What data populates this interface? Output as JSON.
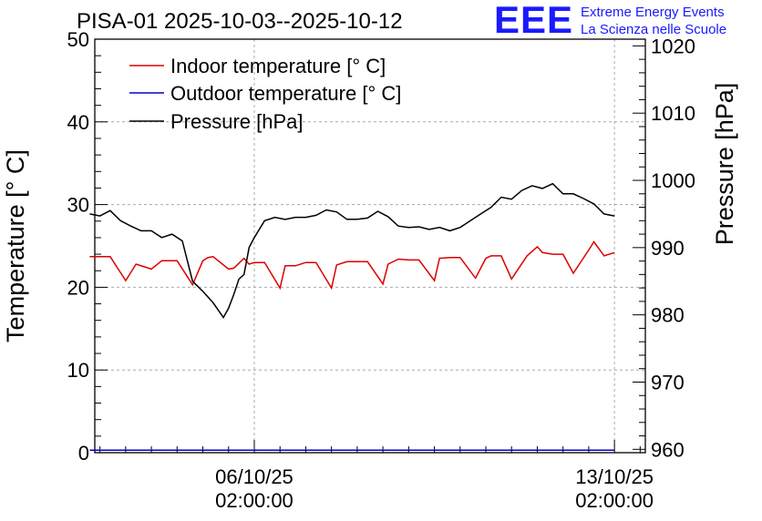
{
  "header": {
    "title": "PISA-01 2025-10-03--2025-10-12",
    "logo_text": "EEE",
    "logo_line1": "Extreme Energy Events",
    "logo_line2": "La Scienza nelle Scuole"
  },
  "colors": {
    "indoor": "#dd0000",
    "outdoor": "#0000cc",
    "pressure": "#000000",
    "logo": "#1a1aff"
  },
  "chart_data": {
    "type": "line",
    "title": "PISA-01 2025-10-03--2025-10-12",
    "ylabel": "Temperature [° C]",
    "y2label": "Pressure [hPa]",
    "ylim": [
      0,
      50
    ],
    "y2lim": [
      959.5,
      1021
    ],
    "yticks": [
      "0",
      "10",
      "20",
      "30",
      "40",
      "50"
    ],
    "y2ticks": [
      "960",
      "970",
      "980",
      "990",
      "1000",
      "1010",
      "1020"
    ],
    "xlim": [
      -3.1,
      7.6
    ],
    "xticks": [
      {
        "x": 0,
        "date": "06/10/25",
        "time": "02:00:00"
      },
      {
        "x": 7,
        "date": "13/10/25",
        "time": "02:00:00"
      }
    ],
    "grid": true,
    "legend_position": "top-left",
    "series": [
      {
        "name": "Indoor temperature [° C]",
        "axis": "left",
        "x": [
          -3.2,
          -2.8,
          -2.5,
          -2.3,
          -2.0,
          -1.8,
          -1.5,
          -1.2,
          -1.0,
          -0.9,
          -0.8,
          -0.5,
          -0.4,
          -0.2,
          -0.1,
          0.0,
          0.2,
          0.5,
          0.6,
          0.8,
          1.0,
          1.2,
          1.5,
          1.6,
          1.8,
          2.0,
          2.2,
          2.5,
          2.6,
          2.8,
          3.0,
          3.2,
          3.5,
          3.6,
          3.8,
          4.0,
          4.3,
          4.5,
          4.6,
          4.8,
          5.0,
          5.3,
          5.5,
          5.6,
          5.8,
          6.0,
          6.2,
          6.5,
          6.6,
          6.8,
          7.0
        ],
        "values": [
          23.7,
          23.7,
          20.8,
          22.8,
          22.2,
          23.2,
          23.2,
          20.3,
          23.2,
          23.6,
          23.7,
          22.2,
          22.3,
          23.5,
          22.8,
          23.0,
          23.0,
          19.9,
          22.6,
          22.6,
          23.0,
          23.0,
          19.9,
          22.7,
          23.1,
          23.1,
          23.1,
          20.4,
          22.8,
          23.4,
          23.3,
          23.3,
          20.8,
          23.5,
          23.6,
          23.6,
          21.1,
          23.5,
          23.8,
          23.8,
          21.0,
          23.8,
          24.9,
          24.2,
          24.0,
          24.0,
          21.7,
          24.5,
          25.5,
          23.8,
          24.2
        ]
      },
      {
        "name": "Outdoor temperature [° C]",
        "axis": "left",
        "x": [
          -3.2,
          7.0
        ],
        "values": [
          0.3,
          0.3
        ]
      },
      {
        "name": "Pressure [hPa]",
        "axis": "right",
        "x": [
          -3.2,
          -3.0,
          -2.8,
          -2.6,
          -2.4,
          -2.2,
          -2.0,
          -1.8,
          -1.6,
          -1.4,
          -1.2,
          -1.0,
          -0.8,
          -0.6,
          -0.5,
          -0.4,
          -0.3,
          -0.2,
          -0.1,
          0.0,
          0.2,
          0.4,
          0.6,
          0.8,
          1.0,
          1.2,
          1.4,
          1.6,
          1.8,
          2.0,
          2.2,
          2.4,
          2.6,
          2.8,
          3.0,
          3.2,
          3.4,
          3.6,
          3.8,
          4.0,
          4.2,
          4.4,
          4.6,
          4.8,
          5.0,
          5.2,
          5.4,
          5.6,
          5.8,
          6.0,
          6.2,
          6.4,
          6.6,
          6.8,
          7.0
        ],
        "values": [
          995,
          994.7,
          995.5,
          994,
          993.2,
          992.5,
          992.5,
          991.5,
          992,
          991,
          985,
          983.5,
          981.8,
          979.6,
          981,
          983,
          985.3,
          986,
          990,
          991.5,
          994,
          994.5,
          994.2,
          994.5,
          994.5,
          994.8,
          995.6,
          995.3,
          994.2,
          994.2,
          994.4,
          995.4,
          994.6,
          993.2,
          993,
          993.1,
          992.7,
          993,
          992.5,
          993,
          994,
          995,
          996,
          997.5,
          997.2,
          998.5,
          999.2,
          998.8,
          999.5,
          998,
          998,
          997.3,
          996.5,
          995,
          994.7
        ]
      }
    ]
  }
}
